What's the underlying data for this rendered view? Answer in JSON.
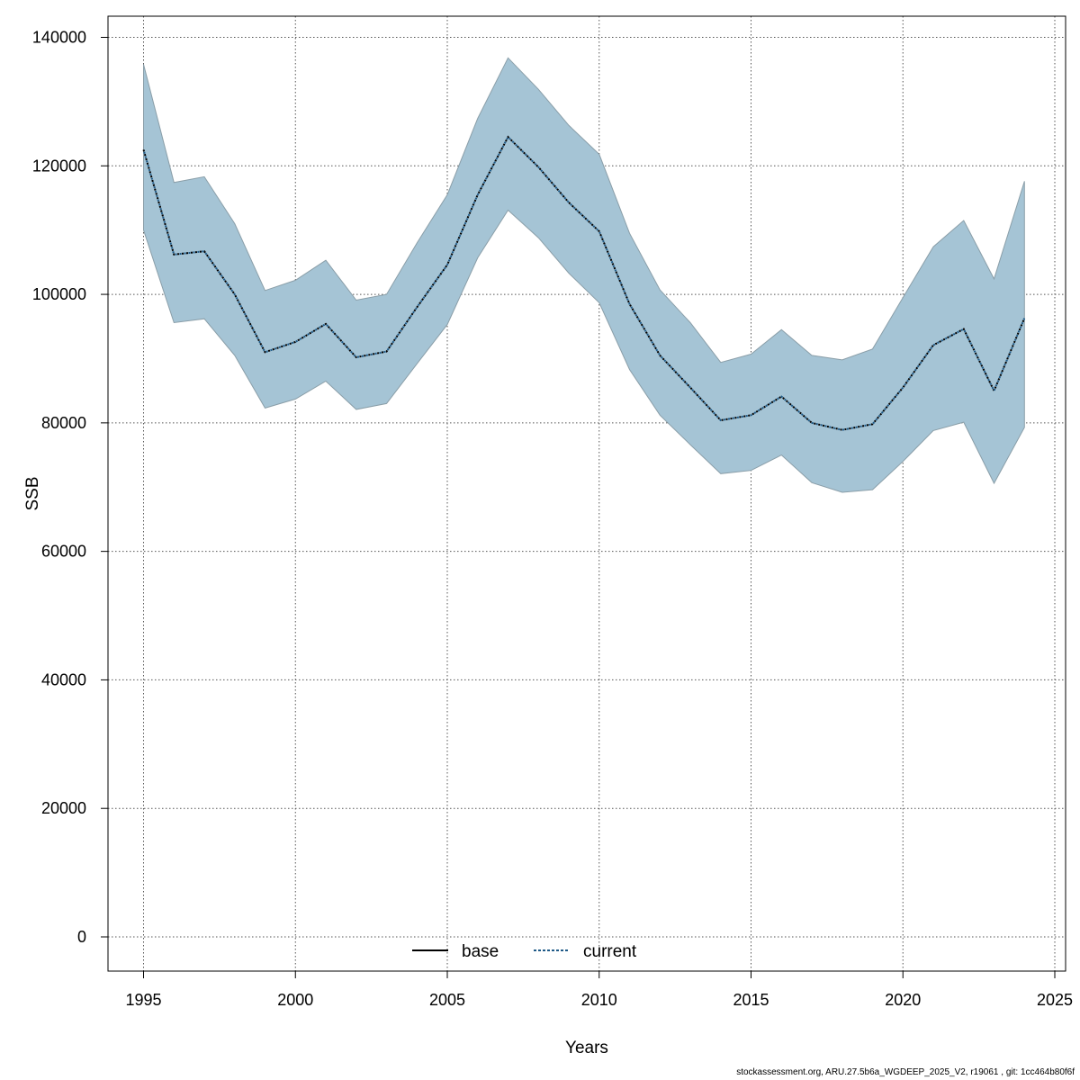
{
  "chart_data": {
    "type": "area",
    "title": "",
    "xlabel": "Years",
    "ylabel": "SSB",
    "xlim": [
      1995,
      2025
    ],
    "ylim": [
      0,
      140000
    ],
    "x_ticks": [
      1995,
      2000,
      2005,
      2010,
      2015,
      2020,
      2025
    ],
    "y_ticks": [
      0,
      20000,
      40000,
      60000,
      80000,
      100000,
      120000,
      140000
    ],
    "grid": true,
    "legend_position": "bottom-center",
    "x": [
      1995,
      1996,
      1997,
      1998,
      1999,
      2000,
      2001,
      2002,
      2003,
      2004,
      2005,
      2006,
      2007,
      2008,
      2009,
      2010,
      2011,
      2012,
      2013,
      2014,
      2015,
      2016,
      2017,
      2018,
      2019,
      2020,
      2021,
      2022,
      2023,
      2024
    ],
    "series": [
      {
        "name": "base",
        "line_style": "solid",
        "color": "#000000",
        "values": [
          122500,
          106200,
          106700,
          100000,
          91000,
          92600,
          95400,
          90200,
          91100,
          98000,
          104600,
          115500,
          124500,
          119800,
          114300,
          109800,
          98500,
          90500,
          85500,
          80400,
          81200,
          84100,
          80000,
          78900,
          79800,
          85500,
          92100,
          94600,
          85000,
          96300
        ]
      },
      {
        "name": "current",
        "line_style": "dashed",
        "color": "#1f5a87",
        "values": [
          122500,
          106200,
          106700,
          100000,
          91000,
          92600,
          95400,
          90200,
          91100,
          98000,
          104600,
          115500,
          124500,
          119800,
          114300,
          109800,
          98500,
          90500,
          85500,
          80400,
          81200,
          84100,
          80000,
          78900,
          79800,
          85500,
          92100,
          94600,
          85000,
          96300
        ]
      }
    ],
    "band": {
      "color": "#a5c4d5",
      "lower": [
        110000,
        95600,
        96200,
        90500,
        82300,
        83700,
        86500,
        82100,
        83000,
        89200,
        95300,
        105700,
        113100,
        108800,
        103300,
        98700,
        88300,
        81200,
        76600,
        72100,
        72600,
        75000,
        70700,
        69200,
        69600,
        74000,
        78800,
        80100,
        70600,
        79300
      ],
      "upper": [
        135800,
        117400,
        118300,
        111000,
        100600,
        102200,
        105300,
        99100,
        100000,
        108000,
        115500,
        127400,
        136800,
        131900,
        126300,
        121800,
        109500,
        100700,
        95600,
        89400,
        90700,
        94500,
        90500,
        89800,
        91500,
        99500,
        107400,
        111500,
        102400,
        117600
      ]
    }
  },
  "footer_text": "stockassessment.org, ARU.27.5b6a_WGDEEP_2025_V2, r19061 , git: 1cc464b80f6f"
}
